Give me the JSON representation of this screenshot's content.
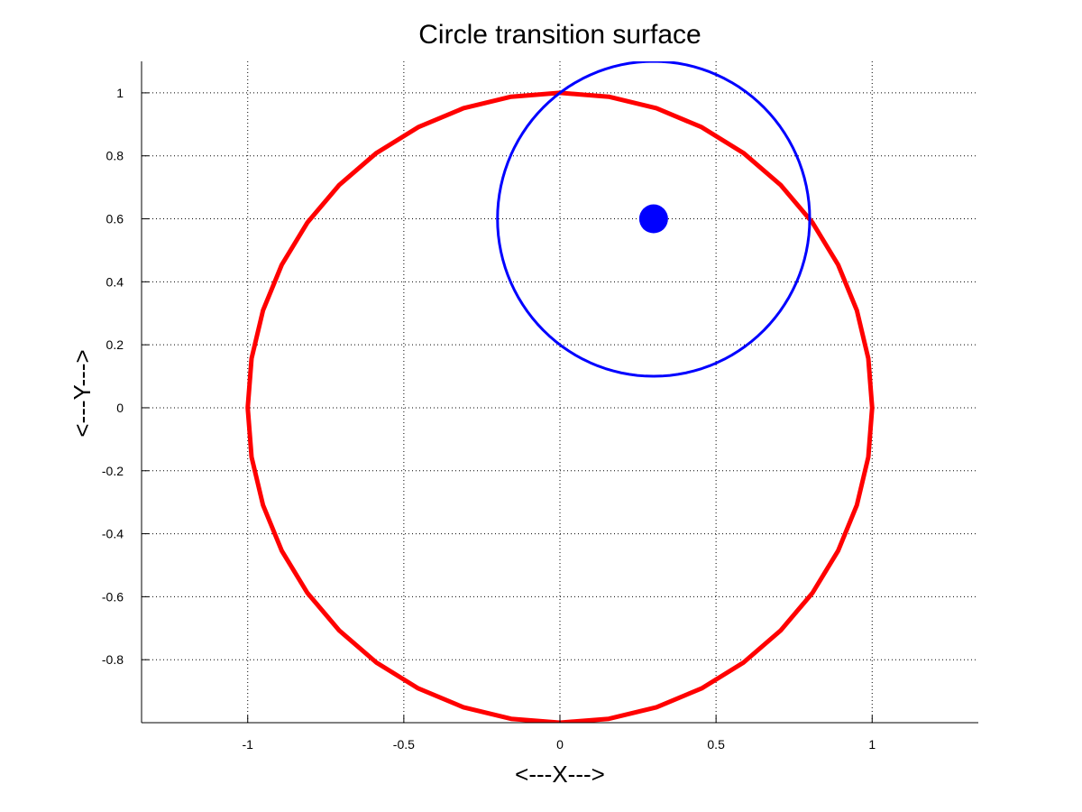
{
  "chart_data": {
    "type": "line",
    "title": "Circle transition surface",
    "xlabel": "<---X--->",
    "ylabel": "<---Y--->",
    "xlim": [
      -1.34,
      1.34
    ],
    "ylim": [
      -1.0,
      1.1
    ],
    "grid": true,
    "grid_style": "dotted",
    "x_ticks": [
      -1,
      -0.5,
      0,
      0.5,
      1
    ],
    "x_tick_labels": [
      "-1",
      "-0.5",
      "0",
      "0.5",
      "1"
    ],
    "y_ticks": [
      -0.8,
      -0.6,
      -0.4,
      -0.2,
      0,
      0.2,
      0.4,
      0.6,
      0.8,
      1
    ],
    "y_tick_labels": [
      "-0.8",
      "-0.6",
      "-0.4",
      "-0.2",
      "0",
      "0.2",
      "0.4",
      "0.6",
      "0.8",
      "1"
    ],
    "series": [
      {
        "kind": "circle",
        "center": [
          0,
          0
        ],
        "radius": 1.0,
        "segments": 40,
        "color": "#ff0000",
        "line_width": 5
      },
      {
        "kind": "circle",
        "center": [
          0.3,
          0.6
        ],
        "radius": 0.5,
        "segments": 120,
        "color": "#0000ff",
        "line_width": 3
      },
      {
        "kind": "point",
        "x": 0.3,
        "y": 0.6,
        "color": "#0000ff",
        "marker_size": 16
      }
    ]
  }
}
